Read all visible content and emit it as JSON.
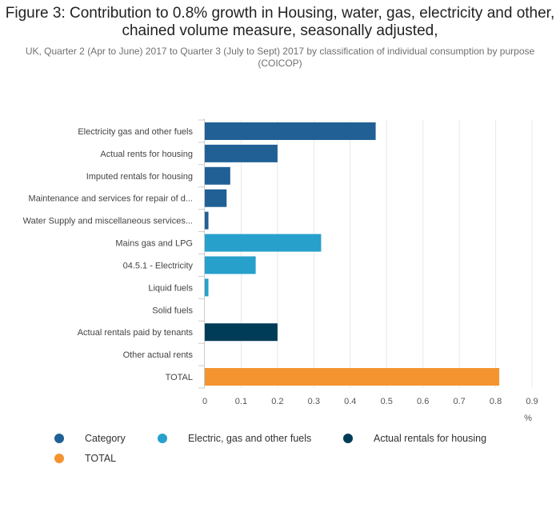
{
  "title": "Figure 3: Contribution to 0.8% growth in Housing, water, gas, electricity and other, chained volume measure, seasonally adjusted,",
  "subtitle": "UK, Quarter 2 (Apr to June) 2017 to Quarter 3 (July to Sept) 2017 by classification of individual consumption by purpose (COICOP)",
  "chart_data": {
    "type": "bar",
    "orientation": "horizontal",
    "title": "Figure 3: Contribution to 0.8% growth in Housing, water, gas, electricity and other, chained volume measure, seasonally adjusted,",
    "xlabel": "%",
    "ylabel": "",
    "xlim": [
      0,
      0.9
    ],
    "xticks": [
      "0",
      "0.1",
      "0.2",
      "0.3",
      "0.4",
      "0.5",
      "0.6",
      "0.7",
      "0.8",
      "0.9"
    ],
    "grid": "vertical",
    "legend_position": "bottom",
    "categories": [
      "Electricity gas and other fuels",
      "Actual rents for housing",
      "Imputed rentals for housing",
      "Maintenance and services for repair of d...",
      "Water Supply and miscellaneous services...",
      "Mains gas and LPG",
      "04.5.1 - Electricity",
      "Liquid fuels",
      "Solid fuels",
      "Actual rentals paid by tenants",
      "Other actual rents",
      "TOTAL"
    ],
    "values": [
      0.47,
      0.2,
      0.07,
      0.06,
      0.01,
      0.32,
      0.14,
      0.01,
      0,
      0.2,
      0,
      0.81
    ],
    "groups": [
      "Category",
      "Category",
      "Category",
      "Category",
      "Category",
      "Electric, gas and other fuels",
      "Electric, gas and other fuels",
      "Electric, gas and other fuels",
      "Electric, gas and other fuels",
      "Actual rentals for housing",
      "Actual rentals for housing",
      "TOTAL"
    ],
    "series": [
      {
        "name": "Category",
        "color": "#206095"
      },
      {
        "name": "Electric, gas and other fuels",
        "color": "#27a0cc"
      },
      {
        "name": "Actual rentals for housing",
        "color": "#003c57"
      },
      {
        "name": "TOTAL",
        "color": "#f39431"
      }
    ]
  }
}
